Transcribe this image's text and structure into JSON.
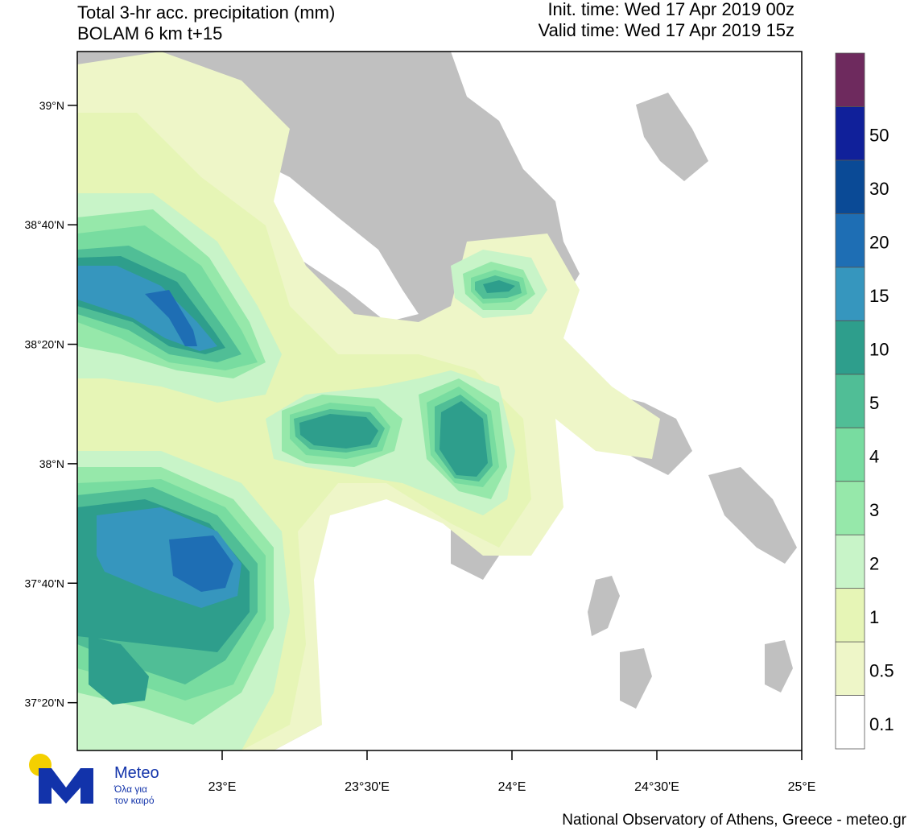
{
  "header": {
    "title_line1": "Total 3-hr acc. precipitation (mm)",
    "title_line2": "BOLAM 6 km t+15",
    "init_time": "Init. time: Wed 17 Apr 2019 00z",
    "valid_time": "Valid time: Wed 17 Apr 2019 15z"
  },
  "map": {
    "lat_labels": [
      "39°N",
      "38°40'N",
      "38°20'N",
      "38°N",
      "37°40'N",
      "37°20'N"
    ],
    "lat_values": [
      39.0,
      38.6667,
      38.3333,
      38.0,
      37.6667,
      37.3333
    ],
    "lon_labels": [
      "23°E",
      "23°30'E",
      "24°E",
      "24°30'E",
      "25°E"
    ],
    "lon_values": [
      23.0,
      23.5,
      24.0,
      24.5,
      25.0
    ],
    "lon_range": [
      22.5,
      25.0
    ],
    "lat_range": [
      37.2,
      39.15
    ],
    "land_color": "#c0c0c0",
    "sea_color": "#ffffff"
  },
  "legend": {
    "levels": [
      "0.1",
      "0.5",
      "1",
      "2",
      "3",
      "4",
      "5",
      "10",
      "15",
      "20",
      "30",
      "50"
    ],
    "colors": [
      "#ffffff",
      "#eef6c8",
      "#e6f5b6",
      "#c8f4c8",
      "#96e8aa",
      "#78dca0",
      "#50be96",
      "#2e9e8c",
      "#3696be",
      "#1e6eb4",
      "#0a4a96",
      "#10209a",
      "#6e2a5e"
    ]
  },
  "logo": {
    "brand": "Meteo",
    "tagline1": "Όλα για",
    "tagline2": "τον καιρό",
    "brand_color": "#1233aa",
    "sun_color": "#f4d000"
  },
  "footer": {
    "credit": "National Observatory of Athens, Greece - meteo.gr"
  }
}
